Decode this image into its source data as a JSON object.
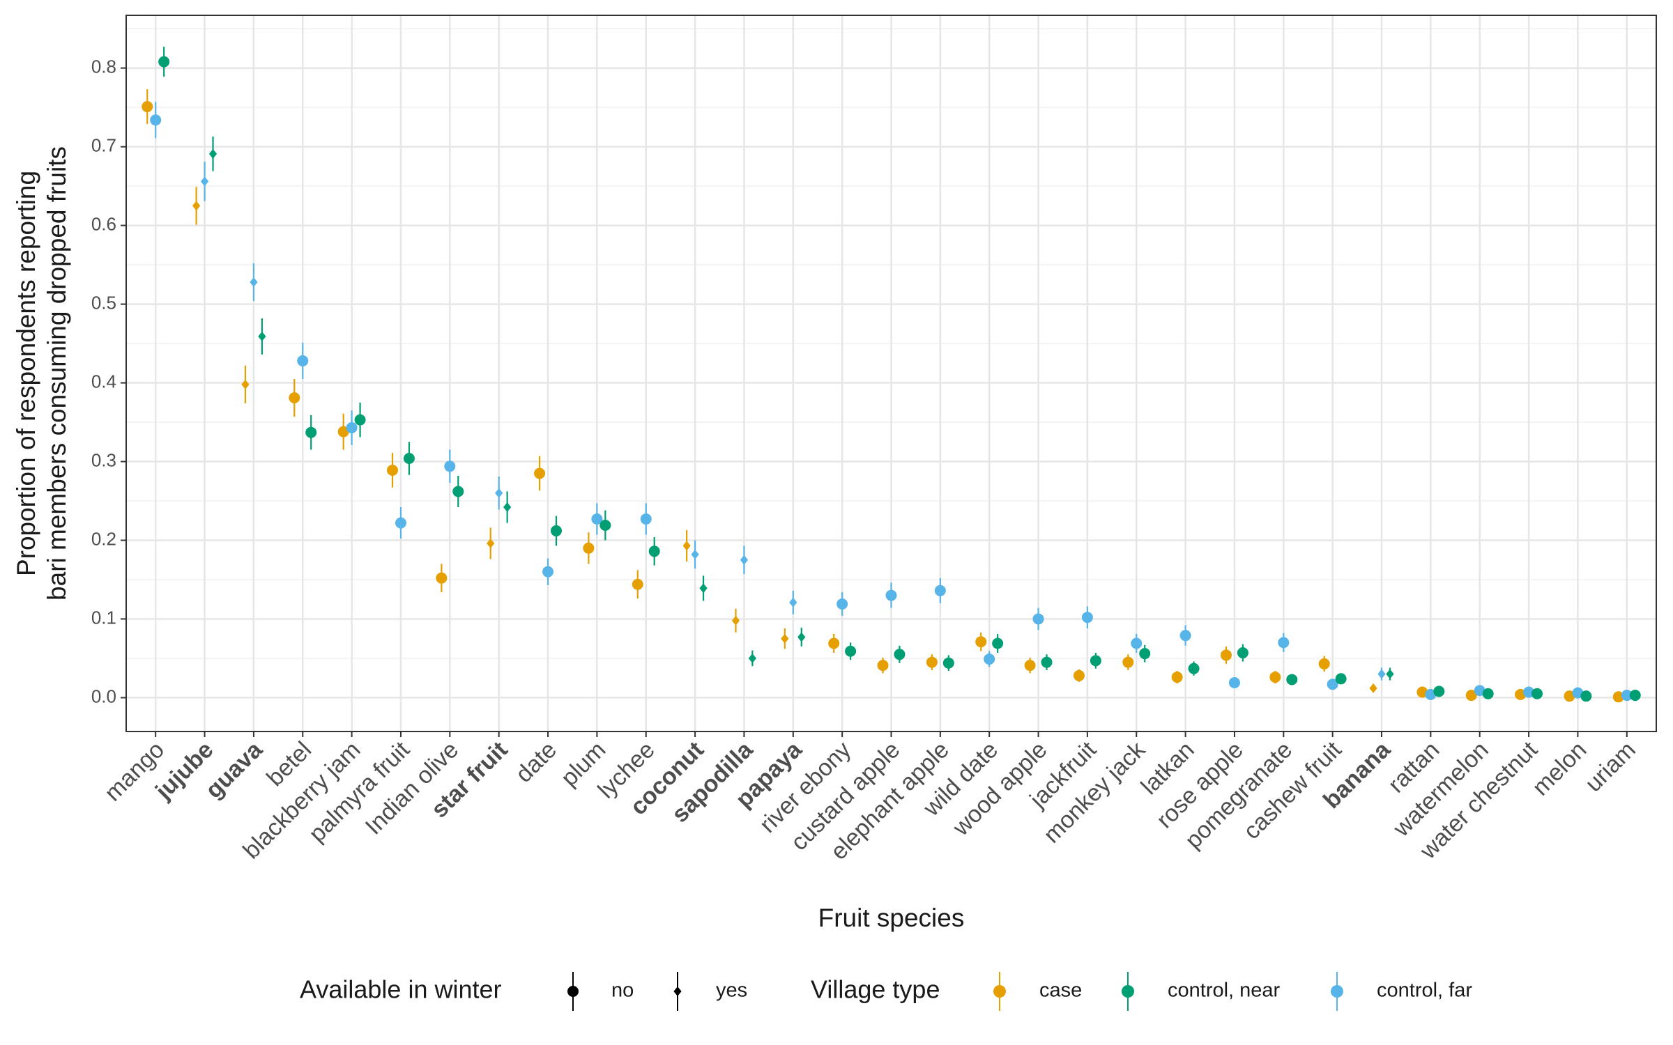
{
  "chart_data": {
    "type": "pointrange",
    "x_label": "Fruit species",
    "y_label": [
      "Proportion of respondents reporting",
      "bari members consuming dropped fruits"
    ],
    "categories": [
      "mango",
      "jujube",
      "guava",
      "betel",
      "blackberry jam",
      "palmyra fruit",
      "Indian olive",
      "star fruit",
      "date",
      "plum",
      "lychee",
      "coconut",
      "sapodilla",
      "papaya",
      "river ebony",
      "custard apple",
      "elephant apple",
      "wild date",
      "wood apple",
      "jackfruit",
      "monkey jack",
      "latkan",
      "rose apple",
      "pomegranate",
      "cashew fruit",
      "banana",
      "rattan",
      "watermelon",
      "water chestnut",
      "melon",
      "uriam"
    ],
    "available_in_winter": [
      false,
      true,
      true,
      false,
      false,
      false,
      false,
      true,
      false,
      false,
      false,
      true,
      true,
      true,
      false,
      false,
      false,
      false,
      false,
      false,
      false,
      false,
      false,
      false,
      false,
      true,
      false,
      false,
      false,
      false,
      false
    ],
    "series": [
      {
        "name": "case",
        "color": "#E69F00",
        "values": [
          0.751,
          0.625,
          0.398,
          0.381,
          0.338,
          0.289,
          0.152,
          0.196,
          0.285,
          0.19,
          0.144,
          0.193,
          0.098,
          0.075,
          0.069,
          0.041,
          0.045,
          0.071,
          0.041,
          0.028,
          0.045,
          0.026,
          0.054,
          0.026,
          0.043,
          0.012,
          0.007,
          0.003,
          0.004,
          0.002,
          0.001
        ],
        "errors": [
          0.022,
          0.024,
          0.024,
          0.024,
          0.023,
          0.022,
          0.018,
          0.02,
          0.022,
          0.02,
          0.018,
          0.02,
          0.015,
          0.013,
          0.012,
          0.01,
          0.01,
          0.012,
          0.01,
          0.008,
          0.01,
          0.008,
          0.011,
          0.008,
          0.01,
          0.005,
          0.004,
          0.003,
          0.003,
          0.002,
          0.002
        ]
      },
      {
        "name": "control, near",
        "color": "#009E73",
        "values": [
          0.808,
          0.691,
          0.459,
          0.337,
          0.353,
          0.304,
          0.262,
          0.242,
          0.212,
          0.219,
          0.186,
          0.139,
          0.05,
          0.077,
          0.059,
          0.055,
          0.044,
          0.069,
          0.045,
          0.047,
          0.056,
          0.037,
          0.057,
          0.023,
          0.024,
          0.03,
          0.008,
          0.005,
          0.005,
          0.002,
          0.003
        ],
        "errors": [
          0.019,
          0.022,
          0.023,
          0.022,
          0.022,
          0.021,
          0.02,
          0.02,
          0.019,
          0.019,
          0.018,
          0.016,
          0.01,
          0.012,
          0.011,
          0.011,
          0.01,
          0.012,
          0.01,
          0.01,
          0.011,
          0.009,
          0.011,
          0.007,
          0.007,
          0.008,
          0.004,
          0.003,
          0.003,
          0.002,
          0.002
        ]
      },
      {
        "name": "control, far",
        "color": "#56B4E9",
        "values": [
          0.734,
          0.656,
          0.528,
          0.428,
          0.343,
          0.222,
          0.294,
          0.26,
          0.16,
          0.227,
          0.227,
          0.182,
          0.175,
          0.121,
          0.119,
          0.13,
          0.136,
          0.049,
          0.1,
          0.102,
          0.069,
          0.079,
          0.019,
          0.07,
          0.017,
          0.03,
          0.004,
          0.009,
          0.007,
          0.006,
          0.003
        ],
        "errors": [
          0.023,
          0.025,
          0.024,
          0.023,
          0.022,
          0.02,
          0.021,
          0.021,
          0.017,
          0.02,
          0.02,
          0.018,
          0.018,
          0.015,
          0.015,
          0.016,
          0.016,
          0.01,
          0.014,
          0.014,
          0.012,
          0.013,
          0.007,
          0.012,
          0.006,
          0.008,
          0.003,
          0.004,
          0.004,
          0.003,
          0.002
        ]
      }
    ],
    "ylim": [
      -0.043,
      0.867
    ],
    "yticks": [
      {
        "value": 0,
        "label": "0.0"
      },
      0.1,
      0.2,
      0.3,
      0.4,
      0.5,
      0.6,
      0.7,
      0.8
    ],
    "yminor": [
      0.05,
      0.15,
      0.25,
      0.35,
      0.45,
      0.55,
      0.65,
      0.75,
      0.85
    ],
    "grid": true,
    "legend_position": "bottom",
    "shape_legend": {
      "title": "Available in winter",
      "labels": [
        "no",
        "yes"
      ]
    },
    "color_legend_title": "Village type"
  }
}
